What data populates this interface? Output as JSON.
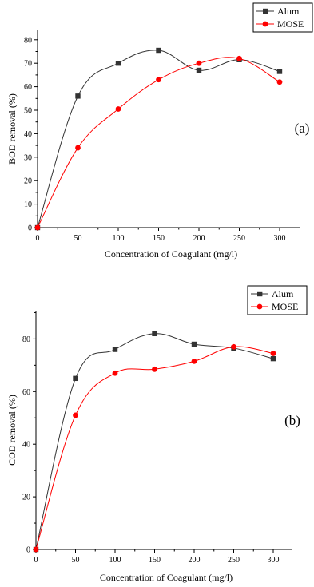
{
  "chart_data": [
    {
      "type": "line",
      "panel_label": "(a)",
      "x": [
        0,
        50,
        100,
        150,
        200,
        250,
        300
      ],
      "series": [
        {
          "name": "Alum",
          "values": [
            0,
            56,
            70,
            75.5,
            67,
            71.5,
            66.5
          ],
          "color": "#333333",
          "marker": "square"
        },
        {
          "name": "MOSE",
          "values": [
            0,
            34,
            50.5,
            63,
            70,
            72,
            62
          ],
          "color": "#ff0000",
          "marker": "circle"
        }
      ],
      "xlabel": "Concentration of Coagulant (mg/l)",
      "ylabel": "BOD removal (%)",
      "xlim": [
        0,
        300
      ],
      "ylim": [
        0,
        85
      ],
      "xticks": [
        "0",
        "50",
        "100",
        "150",
        "200",
        "250",
        "300"
      ],
      "yticks": [
        "0",
        "10",
        "20",
        "30",
        "40",
        "50",
        "60",
        "70",
        "80"
      ],
      "legend": "top-right",
      "grid": false
    },
    {
      "type": "line",
      "panel_label": "(b)",
      "x": [
        0,
        50,
        100,
        150,
        200,
        250,
        300
      ],
      "series": [
        {
          "name": "Alum",
          "values": [
            0,
            65,
            76,
            82,
            78,
            76.5,
            72.5
          ],
          "color": "#333333",
          "marker": "square"
        },
        {
          "name": "MOSE",
          "values": [
            0,
            51,
            67,
            68.5,
            71.5,
            77,
            74.5
          ],
          "color": "#ff0000",
          "marker": "circle"
        }
      ],
      "xlabel": "Concentration of Coagulant (mg/l)",
      "ylabel": "COD removal (%)",
      "xlim": [
        0,
        300
      ],
      "ylim": [
        0,
        90
      ],
      "xticks": [
        "0",
        "50",
        "100",
        "150",
        "200",
        "250",
        "300"
      ],
      "yticks": [
        "0",
        "20",
        "40",
        "60",
        "80"
      ],
      "legend": "top-right",
      "grid": false
    }
  ]
}
